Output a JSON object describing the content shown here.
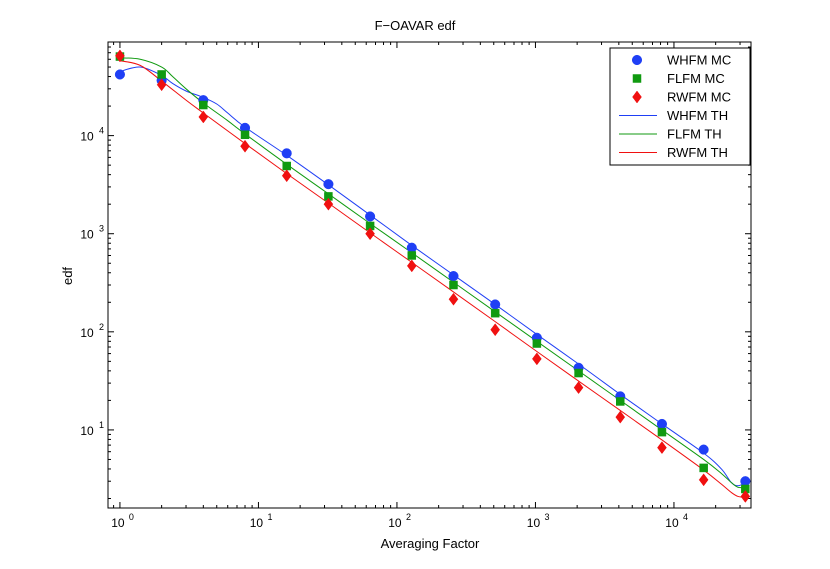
{
  "chart_data": {
    "type": "scatter",
    "title": "F−OAVAR edf",
    "xlabel": "Averaging Factor",
    "ylabel": "edf",
    "xscale": "log",
    "yscale": "log",
    "xlim": [
      0.82,
      36000
    ],
    "ylim": [
      1.6,
      90000
    ],
    "grid": false,
    "legend_position": "top-right",
    "x_ticks": [
      {
        "value": 1,
        "base": "10",
        "exp": "0"
      },
      {
        "value": 10,
        "base": "10",
        "exp": "1"
      },
      {
        "value": 100,
        "base": "10",
        "exp": "2"
      },
      {
        "value": 1000,
        "base": "10",
        "exp": "3"
      },
      {
        "value": 10000,
        "base": "10",
        "exp": "4"
      }
    ],
    "y_ticks": [
      {
        "value": 10,
        "base": "10",
        "exp": "1"
      },
      {
        "value": 100,
        "base": "10",
        "exp": "2"
      },
      {
        "value": 1000,
        "base": "10",
        "exp": "3"
      },
      {
        "value": 10000,
        "base": "10",
        "exp": "4"
      }
    ],
    "x": [
      1,
      2,
      4,
      8,
      16,
      32,
      64,
      128,
      256,
      512,
      1024,
      2048,
      4096,
      8192,
      16384,
      32768
    ],
    "series": [
      {
        "name": "WHFM MC",
        "kind": "marker",
        "marker": "circle",
        "color": "#1f3ff5",
        "values": [
          42000,
          36500,
          23000,
          12000,
          6600,
          3200,
          1500,
          720,
          370,
          190,
          87,
          43,
          22,
          11.5,
          6.3,
          3.0
        ]
      },
      {
        "name": "FLFM MC",
        "kind": "marker",
        "marker": "square",
        "color": "#109a10",
        "values": [
          64000,
          42000,
          20500,
          10200,
          4900,
          2400,
          1200,
          600,
          300,
          155,
          76,
          38,
          19.5,
          9.5,
          4.1,
          2.5
        ]
      },
      {
        "name": "RWFM MC",
        "kind": "marker",
        "marker": "diamond",
        "color": "#f01010",
        "values": [
          65000,
          33000,
          15500,
          7800,
          3900,
          2000,
          1000,
          470,
          215,
          105,
          53,
          27,
          13.5,
          6.6,
          3.1,
          2.1
        ]
      },
      {
        "name": "WHFM TH",
        "kind": "line",
        "color": "#1f3ff5",
        "x": [
          1,
          1.4,
          2,
          2.4,
          3,
          4,
          5,
          6,
          8,
          16,
          32,
          64,
          128,
          256,
          512,
          1024,
          2048,
          4096,
          8192,
          16384,
          22000,
          26000,
          29000,
          32768
        ],
        "values": [
          45000,
          50000,
          41000,
          34000,
          28500,
          24500,
          21000,
          17000,
          12200,
          6300,
          3150,
          1550,
          760,
          380,
          190,
          94,
          47,
          23,
          11.5,
          5.8,
          4.0,
          2.9,
          2.7,
          2.9
        ]
      },
      {
        "name": "FLFM TH",
        "kind": "line",
        "color": "#109a10",
        "x": [
          1,
          1.4,
          2,
          2.4,
          3,
          4,
          6,
          8,
          16,
          32,
          64,
          128,
          256,
          512,
          1024,
          2048,
          4096,
          8192,
          16384,
          22000,
          26000,
          29000,
          32768
        ],
        "values": [
          62000,
          60000,
          50000,
          40000,
          30000,
          21500,
          14200,
          10400,
          5100,
          2550,
          1270,
          640,
          320,
          160,
          80,
          40,
          20,
          10,
          5.0,
          3.6,
          2.9,
          2.6,
          2.6
        ]
      },
      {
        "name": "RWFM TH",
        "kind": "line",
        "color": "#f01010",
        "x": [
          1,
          1.4,
          2,
          3,
          4,
          8,
          16,
          32,
          64,
          128,
          256,
          512,
          1024,
          2048,
          4096,
          8192,
          16384,
          22000,
          26000,
          29000,
          32768
        ],
        "values": [
          58000,
          52000,
          36000,
          23000,
          17000,
          8300,
          4100,
          2050,
          1020,
          510,
          255,
          127,
          63,
          31.5,
          15.8,
          7.9,
          3.9,
          2.8,
          2.3,
          2.1,
          2.05
        ]
      }
    ]
  }
}
